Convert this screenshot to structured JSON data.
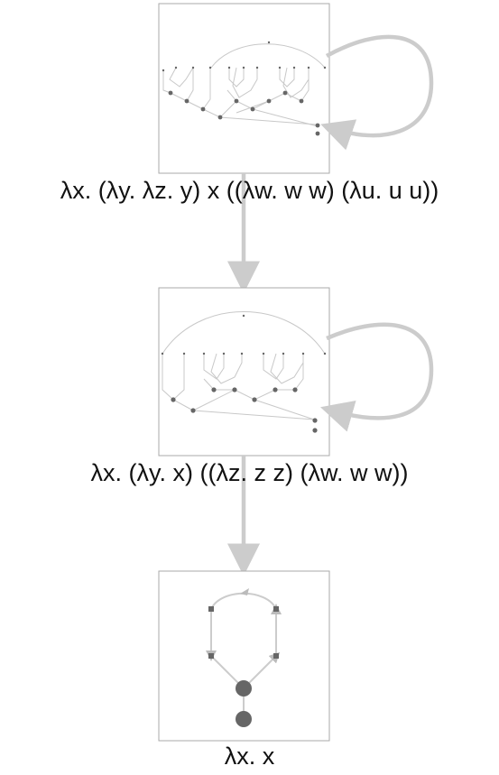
{
  "diagram": {
    "states": [
      {
        "id": "state-1",
        "term": "λx. (λy. λz. y) x ((λw. w w) (λu. u u))",
        "self_loop": true
      },
      {
        "id": "state-2",
        "term": "λx. (λy. x) ((λz. z z) (λw. w w))",
        "self_loop": true
      },
      {
        "id": "state-3",
        "term": "λx. x",
        "self_loop": false
      }
    ],
    "transitions": [
      {
        "from": "state-1",
        "to": "state-2"
      },
      {
        "from": "state-2",
        "to": "state-3"
      }
    ]
  },
  "colors": {
    "arrow": "#cccccc",
    "box_border": "#aaaaaa",
    "node": "#666666",
    "graph_line": "#c8c8c8",
    "text": "#111111"
  }
}
